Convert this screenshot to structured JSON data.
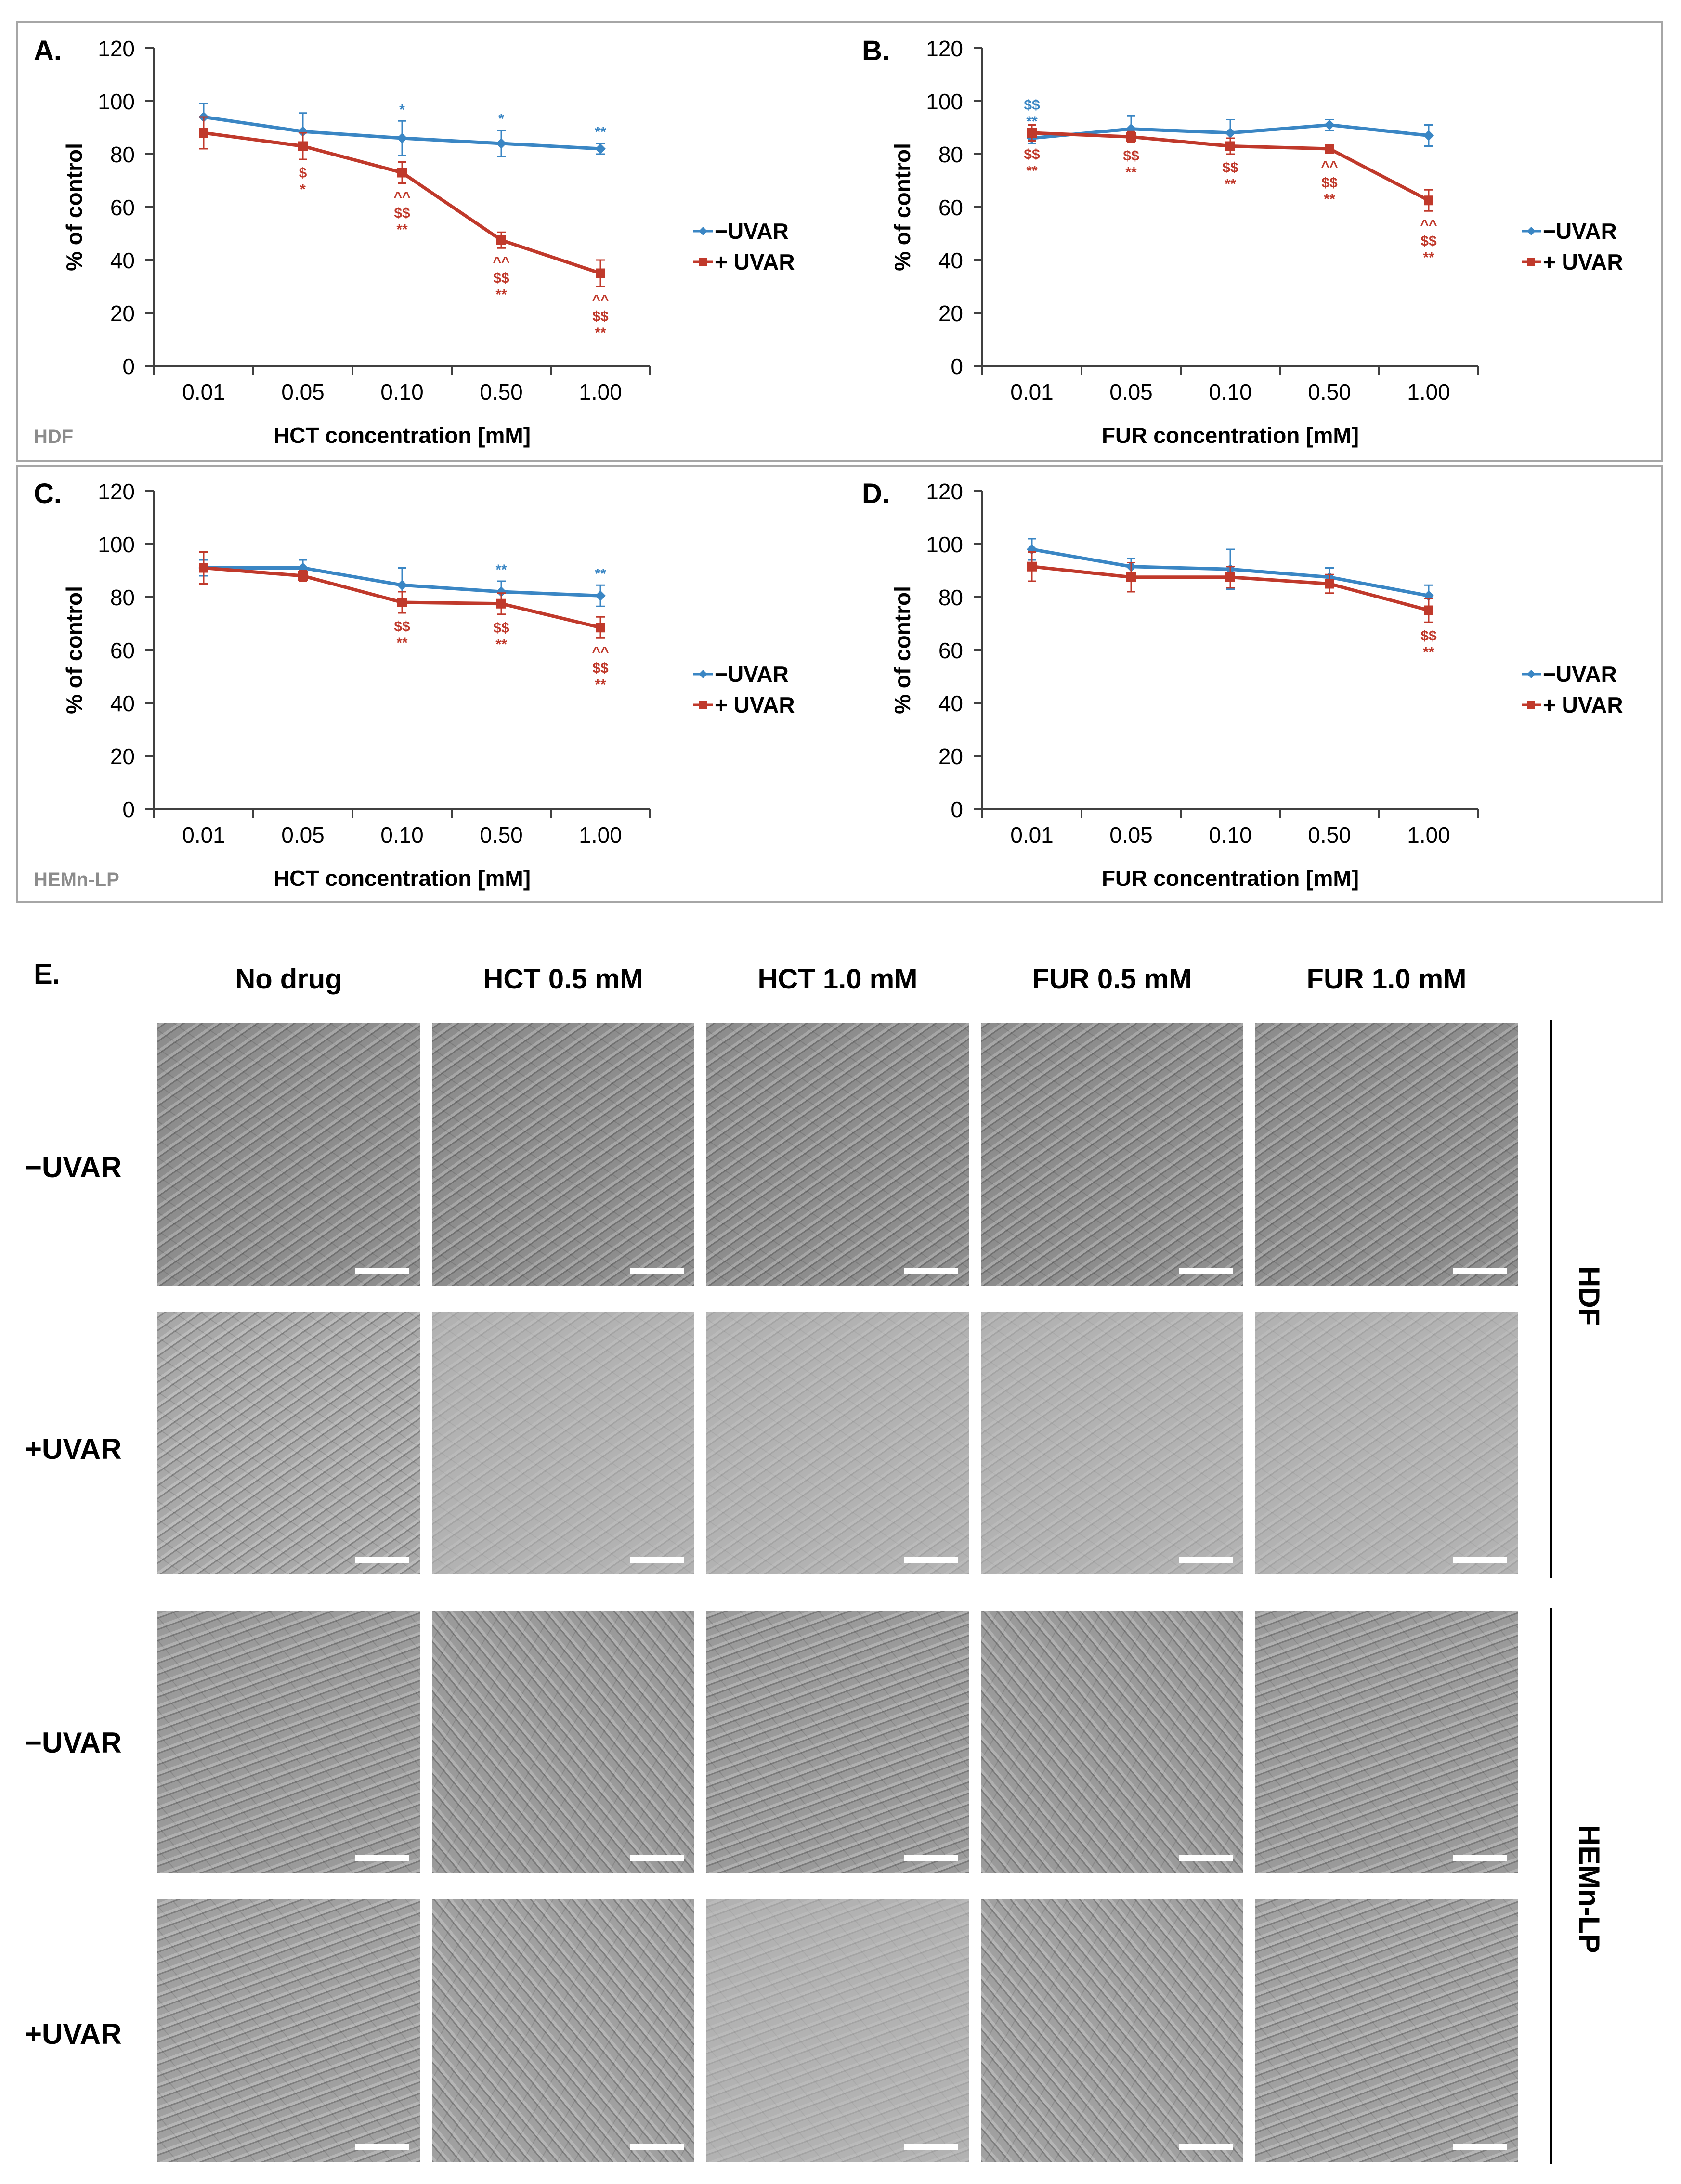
{
  "colors": {
    "minus": "#3a86c4",
    "plus": "#c0392b",
    "border": "#a6a6a6",
    "cell_label": "#8c8c8c"
  },
  "cell_lines": {
    "top": "HDF",
    "bottom": "HEMn-LP"
  },
  "chart_data": [
    {
      "id": "A",
      "panel_label": "A.",
      "type": "line",
      "xlabel": "HCT concentration [mM]",
      "ylabel": "% of control",
      "ylim": [
        0,
        120
      ],
      "yticks": [
        "0",
        "20",
        "40",
        "60",
        "80",
        "100",
        "120"
      ],
      "categories": [
        "0.01",
        "0.05",
        "0.10",
        "0.50",
        "1.00"
      ],
      "cell_label": "HDF",
      "series": [
        {
          "name": "−UVAR",
          "values": [
            94,
            88.5,
            86,
            84,
            82
          ],
          "errors": [
            5,
            7,
            6.5,
            5,
            2
          ],
          "annotations": [
            [],
            [],
            [
              "*"
            ],
            [
              "*"
            ],
            [
              "**"
            ]
          ]
        },
        {
          "name": "+ UVAR",
          "values": [
            88,
            83,
            73,
            47.5,
            35
          ],
          "errors": [
            6,
            5,
            4,
            3,
            5
          ],
          "annotations": [
            [],
            [
              "$",
              "*"
            ],
            [
              "^^",
              "$$",
              "**"
            ],
            [
              "^^",
              "$$",
              "**"
            ],
            [
              "^^",
              "$$",
              "**"
            ]
          ]
        }
      ]
    },
    {
      "id": "B",
      "panel_label": "B.",
      "type": "line",
      "xlabel": "FUR concentration [mM]",
      "ylabel": "% of control",
      "ylim": [
        0,
        120
      ],
      "yticks": [
        "0",
        "20",
        "40",
        "60",
        "80",
        "100",
        "120"
      ],
      "categories": [
        "0.01",
        "0.05",
        "0.10",
        "0.50",
        "1.00"
      ],
      "cell_label": "",
      "series": [
        {
          "name": "−UVAR",
          "values": [
            86,
            89.5,
            88,
            91,
            87
          ],
          "errors": [
            2,
            5,
            5,
            2,
            4
          ],
          "annotations": [
            [
              "$$",
              "**"
            ],
            [],
            [],
            [],
            []
          ]
        },
        {
          "name": "+ UVAR",
          "values": [
            88,
            86.5,
            83,
            82,
            62.5
          ],
          "errors": [
            3,
            2,
            3,
            1.5,
            4
          ],
          "annotations": [
            [
              "$$",
              "**"
            ],
            [
              "$$",
              "**"
            ],
            [
              "$$",
              "**"
            ],
            [
              "^^",
              "$$",
              "**"
            ],
            [
              "^^",
              "$$",
              "**"
            ]
          ]
        }
      ]
    },
    {
      "id": "C",
      "panel_label": "C.",
      "type": "line",
      "xlabel": "HCT concentration [mM]",
      "ylabel": "% of control",
      "ylim": [
        0,
        120
      ],
      "yticks": [
        "0",
        "20",
        "40",
        "60",
        "80",
        "100",
        "120"
      ],
      "categories": [
        "0.01",
        "0.05",
        "0.10",
        "0.50",
        "1.00"
      ],
      "cell_label": "HEMn-LP",
      "series": [
        {
          "name": "−UVAR",
          "values": [
            91,
            91,
            84.5,
            82,
            80.5
          ],
          "errors": [
            3,
            3,
            6.5,
            4,
            4
          ],
          "annotations": [
            [],
            [],
            [],
            [
              "**"
            ],
            [
              "**"
            ]
          ]
        },
        {
          "name": "+ UVAR",
          "values": [
            91,
            88,
            78,
            77.5,
            68.5
          ],
          "errors": [
            6,
            2,
            4,
            4,
            4
          ],
          "annotations": [
            [],
            [],
            [
              "$$",
              "**"
            ],
            [
              "$$",
              "**"
            ],
            [
              "^^",
              "$$",
              "**"
            ]
          ]
        }
      ]
    },
    {
      "id": "D",
      "panel_label": "D.",
      "type": "line",
      "xlabel": "FUR concentration [mM]",
      "ylabel": "% of control",
      "ylim": [
        0,
        120
      ],
      "yticks": [
        "0",
        "20",
        "40",
        "60",
        "80",
        "100",
        "120"
      ],
      "categories": [
        "0.01",
        "0.05",
        "0.10",
        "0.50",
        "1.00"
      ],
      "cell_label": "",
      "series": [
        {
          "name": "−UVAR",
          "values": [
            98,
            91.5,
            90.5,
            87.5,
            80.5
          ],
          "errors": [
            4,
            3,
            7.5,
            3.5,
            4
          ],
          "annotations": [
            [],
            [],
            [],
            [],
            []
          ]
        },
        {
          "name": "+ UVAR",
          "values": [
            91.5,
            87.5,
            87.5,
            85,
            75
          ],
          "errors": [
            5.5,
            5.5,
            4,
            3.5,
            4.5
          ],
          "annotations": [
            [],
            [],
            [],
            [],
            [
              "$$",
              "**"
            ]
          ]
        }
      ]
    }
  ],
  "panel_e": {
    "label": "E.",
    "columns": [
      "No drug",
      "HCT 0.5 mM",
      "HCT 1.0 mM",
      "FUR 0.5 mM",
      "FUR 1.0 mM"
    ],
    "rows": [
      "−UVAR",
      "+UVAR",
      "−UVAR",
      "+UVAR"
    ],
    "groups": [
      "HDF",
      "HEMn-LP"
    ],
    "images": [
      [
        "dense elongated fibroblasts",
        "dense elongated fibroblasts",
        "dense elongated fibroblasts",
        "elongated fibroblasts",
        "elongated fibroblasts"
      ],
      [
        "dense elongated fibroblasts",
        "sparse fibroblasts",
        "sparse damaged cells",
        "sparse damaged cells",
        "sparse damaged cells"
      ],
      [
        "dendritic melanocytes",
        "dendritic melanocytes",
        "dendritic melanocytes",
        "dendritic melanocytes",
        "dendritic melanocytes"
      ],
      [
        "dendritic melanocytes",
        "dendritic melanocytes",
        "rounded damaged cells",
        "dendritic melanocytes",
        "dendritic melanocytes"
      ]
    ]
  }
}
